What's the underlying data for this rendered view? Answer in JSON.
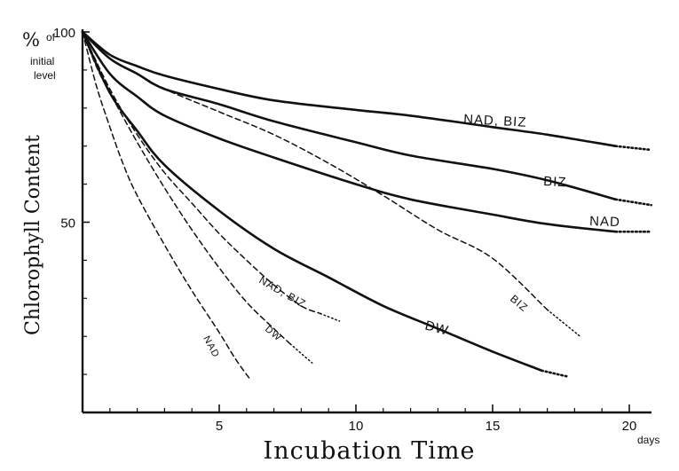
{
  "chart_data": {
    "type": "line",
    "ylabel": "Chlorophyll Content",
    "ylabel_unit": "% of initial level",
    "ylabel_unit_parts": [
      "%",
      "of",
      "initial",
      "level"
    ],
    "xlabel": "Incubation Time",
    "xlabel_unit": "days",
    "xlim": [
      0,
      20.8
    ],
    "ylim": [
      0,
      100
    ],
    "x_ticks": [
      5,
      10,
      15,
      20
    ],
    "y_ticks": [
      50,
      100
    ],
    "y_minor_ticks": [
      10,
      20,
      30,
      40,
      60,
      70,
      80,
      90
    ],
    "x_minor_ticks": [
      1,
      2,
      3,
      4,
      6,
      7,
      8,
      9,
      11,
      12,
      13,
      14,
      16,
      17,
      18,
      19
    ],
    "series": [
      {
        "name": "NAD, BIZ",
        "style": "solid",
        "points": [
          [
            0,
            100
          ],
          [
            1,
            94
          ],
          [
            2,
            91
          ],
          [
            3,
            88.5
          ],
          [
            5,
            85
          ],
          [
            7,
            82
          ],
          [
            10,
            79.5
          ],
          [
            12,
            78
          ],
          [
            15,
            75
          ],
          [
            17,
            73
          ],
          [
            19.5,
            70
          ]
        ],
        "tail": [
          [
            19.5,
            70
          ],
          [
            20.8,
            69
          ]
        ],
        "label": "NAD, BIZ"
      },
      {
        "name": "BIZ",
        "style": "solid",
        "points": [
          [
            0,
            100
          ],
          [
            1,
            93
          ],
          [
            2,
            89
          ],
          [
            3,
            85
          ],
          [
            5,
            81
          ],
          [
            7,
            76.5
          ],
          [
            10,
            71
          ],
          [
            12,
            67.5
          ],
          [
            15,
            64
          ],
          [
            17,
            61
          ],
          [
            19.5,
            56
          ]
        ],
        "tail": [
          [
            19.5,
            56
          ],
          [
            20.8,
            54.5
          ]
        ],
        "label": "BIZ"
      },
      {
        "name": "NAD",
        "style": "solid",
        "points": [
          [
            0,
            100
          ],
          [
            1,
            89
          ],
          [
            2,
            83
          ],
          [
            3,
            78
          ],
          [
            5,
            72
          ],
          [
            7,
            67
          ],
          [
            10,
            60
          ],
          [
            12,
            56
          ],
          [
            15,
            52
          ],
          [
            17,
            49.5
          ],
          [
            19.5,
            47.5
          ]
        ],
        "tail": [
          [
            19.5,
            47.5
          ],
          [
            20.8,
            47.5
          ]
        ],
        "label": "NAD"
      },
      {
        "name": "DW",
        "style": "solid",
        "points": [
          [
            0,
            100
          ],
          [
            1,
            84
          ],
          [
            2,
            74
          ],
          [
            3,
            65
          ],
          [
            5,
            53
          ],
          [
            7,
            43
          ],
          [
            9,
            35.5
          ],
          [
            11,
            28
          ],
          [
            13,
            22
          ],
          [
            15,
            16
          ],
          [
            16.8,
            11
          ]
        ],
        "tail": [
          [
            16.8,
            11
          ],
          [
            17.7,
            9.5
          ]
        ],
        "label": "DW"
      },
      {
        "name": "BIZ",
        "style": "dashed",
        "points": [
          [
            0,
            100
          ],
          [
            1,
            93
          ],
          [
            2,
            89
          ],
          [
            3,
            85
          ],
          [
            5,
            79
          ],
          [
            7,
            73
          ],
          [
            9,
            65.5
          ],
          [
            11,
            57
          ],
          [
            13,
            48
          ],
          [
            15,
            40.5
          ],
          [
            17,
            27
          ]
        ],
        "tail": [
          [
            17,
            27
          ],
          [
            18.2,
            20
          ]
        ],
        "label": "BIZ"
      },
      {
        "name": "NAD, BIZ",
        "style": "dashed",
        "points": [
          [
            0,
            100
          ],
          [
            1,
            85
          ],
          [
            2,
            73
          ],
          [
            3,
            63
          ],
          [
            4,
            55
          ],
          [
            5,
            47
          ],
          [
            6,
            40
          ],
          [
            7,
            33.5
          ],
          [
            8,
            28
          ],
          [
            8.7,
            26
          ]
        ],
        "tail": [
          [
            8.7,
            26
          ],
          [
            9.4,
            24
          ]
        ],
        "label": "NAD, BIZ"
      },
      {
        "name": "DW",
        "style": "dashed",
        "points": [
          [
            0,
            100
          ],
          [
            0.5,
            91
          ],
          [
            1,
            84
          ],
          [
            2,
            71
          ],
          [
            3,
            59
          ],
          [
            4,
            48
          ],
          [
            5,
            38
          ],
          [
            6,
            29
          ],
          [
            7,
            22
          ],
          [
            7.6,
            18
          ]
        ],
        "tail": [
          [
            7.6,
            18
          ],
          [
            8.4,
            13
          ]
        ],
        "label": "DW"
      },
      {
        "name": "NAD",
        "style": "dashed",
        "points": [
          [
            0,
            100
          ],
          [
            0.5,
            86
          ],
          [
            1,
            75
          ],
          [
            1.5,
            65
          ],
          [
            2,
            57
          ],
          [
            3,
            44
          ],
          [
            4,
            32
          ],
          [
            5,
            21
          ],
          [
            5.6,
            14
          ],
          [
            6.1,
            9
          ]
        ],
        "tail": [],
        "label": "NAD"
      }
    ]
  }
}
